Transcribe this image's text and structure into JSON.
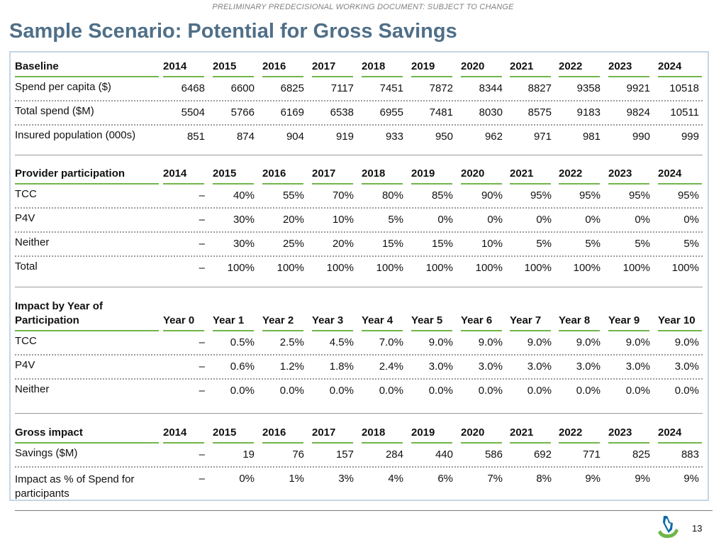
{
  "header": {
    "confidential": "PRELIMINARY PREDECISIONAL WORKING DOCUMENT: SUBJECT TO CHANGE",
    "title": "Sample Scenario: Potential for Gross Savings"
  },
  "sections": [
    {
      "label": "Baseline",
      "columns": [
        "2014",
        "2015",
        "2016",
        "2017",
        "2018",
        "2019",
        "2020",
        "2021",
        "2022",
        "2023",
        "2024"
      ],
      "rows": [
        {
          "label": "Spend per capita ($)",
          "values": [
            "6468",
            "6600",
            "6825",
            "7117",
            "7451",
            "7872",
            "8344",
            "8827",
            "9358",
            "9921",
            "10518"
          ]
        },
        {
          "label": "Total spend ($M)",
          "values": [
            "5504",
            "5766",
            "6169",
            "6538",
            "6955",
            "7481",
            "8030",
            "8575",
            "9183",
            "9824",
            "10511"
          ]
        },
        {
          "label": "Insured population (000s)",
          "values": [
            "851",
            "874",
            "904",
            "919",
            "933",
            "950",
            "962",
            "971",
            "981",
            "990",
            "999"
          ]
        }
      ]
    },
    {
      "label": "Provider participation",
      "columns": [
        "2014",
        "2015",
        "2016",
        "2017",
        "2018",
        "2019",
        "2020",
        "2021",
        "2022",
        "2023",
        "2024"
      ],
      "rows": [
        {
          "label": "TCC",
          "values": [
            "–",
            "40%",
            "55%",
            "70%",
            "80%",
            "85%",
            "90%",
            "95%",
            "95%",
            "95%",
            "95%"
          ]
        },
        {
          "label": "P4V",
          "values": [
            "–",
            "30%",
            "20%",
            "10%",
            "5%",
            "0%",
            "0%",
            "0%",
            "0%",
            "0%",
            "0%"
          ]
        },
        {
          "label": "Neither",
          "values": [
            "–",
            "30%",
            "25%",
            "20%",
            "15%",
            "15%",
            "10%",
            "5%",
            "5%",
            "5%",
            "5%"
          ]
        },
        {
          "label": "Total",
          "values": [
            "–",
            "100%",
            "100%",
            "100%",
            "100%",
            "100%",
            "100%",
            "100%",
            "100%",
            "100%",
            "100%"
          ]
        }
      ]
    },
    {
      "label_line1": "Impact by Year of",
      "label_line2": "Participation",
      "columns": [
        "Year 0",
        "Year 1",
        "Year 2",
        "Year 3",
        "Year 4",
        "Year 5",
        "Year 6",
        "Year 7",
        "Year 8",
        "Year 9",
        "Year 10"
      ],
      "rows": [
        {
          "label": "TCC",
          "values": [
            "–",
            "0.5%",
            "2.5%",
            "4.5%",
            "7.0%",
            "9.0%",
            "9.0%",
            "9.0%",
            "9.0%",
            "9.0%",
            "9.0%"
          ]
        },
        {
          "label": "P4V",
          "values": [
            "–",
            "0.6%",
            "1.2%",
            "1.8%",
            "2.4%",
            "3.0%",
            "3.0%",
            "3.0%",
            "3.0%",
            "3.0%",
            "3.0%"
          ]
        },
        {
          "label": "Neither",
          "values": [
            "–",
            "0.0%",
            "0.0%",
            "0.0%",
            "0.0%",
            "0.0%",
            "0.0%",
            "0.0%",
            "0.0%",
            "0.0%",
            "0.0%"
          ]
        }
      ]
    },
    {
      "label": "Gross impact",
      "columns": [
        "2014",
        "2015",
        "2016",
        "2017",
        "2018",
        "2019",
        "2020",
        "2021",
        "2022",
        "2023",
        "2024"
      ],
      "rows": [
        {
          "label": "Savings ($M)",
          "values": [
            "–",
            "19",
            "76",
            "157",
            "284",
            "440",
            "586",
            "692",
            "771",
            "825",
            "883"
          ]
        },
        {
          "label": "Impact as % of Spend for participants",
          "values": [
            "–",
            "0%",
            "1%",
            "3%",
            "4%",
            "6%",
            "7%",
            "8%",
            "9%",
            "9%",
            "9%"
          ]
        }
      ]
    }
  ],
  "footer": {
    "logo_icon": "state-outline-logo-icon",
    "page_number": "13",
    "accent_color": "#70b64a",
    "title_color": "#4f6f88"
  }
}
